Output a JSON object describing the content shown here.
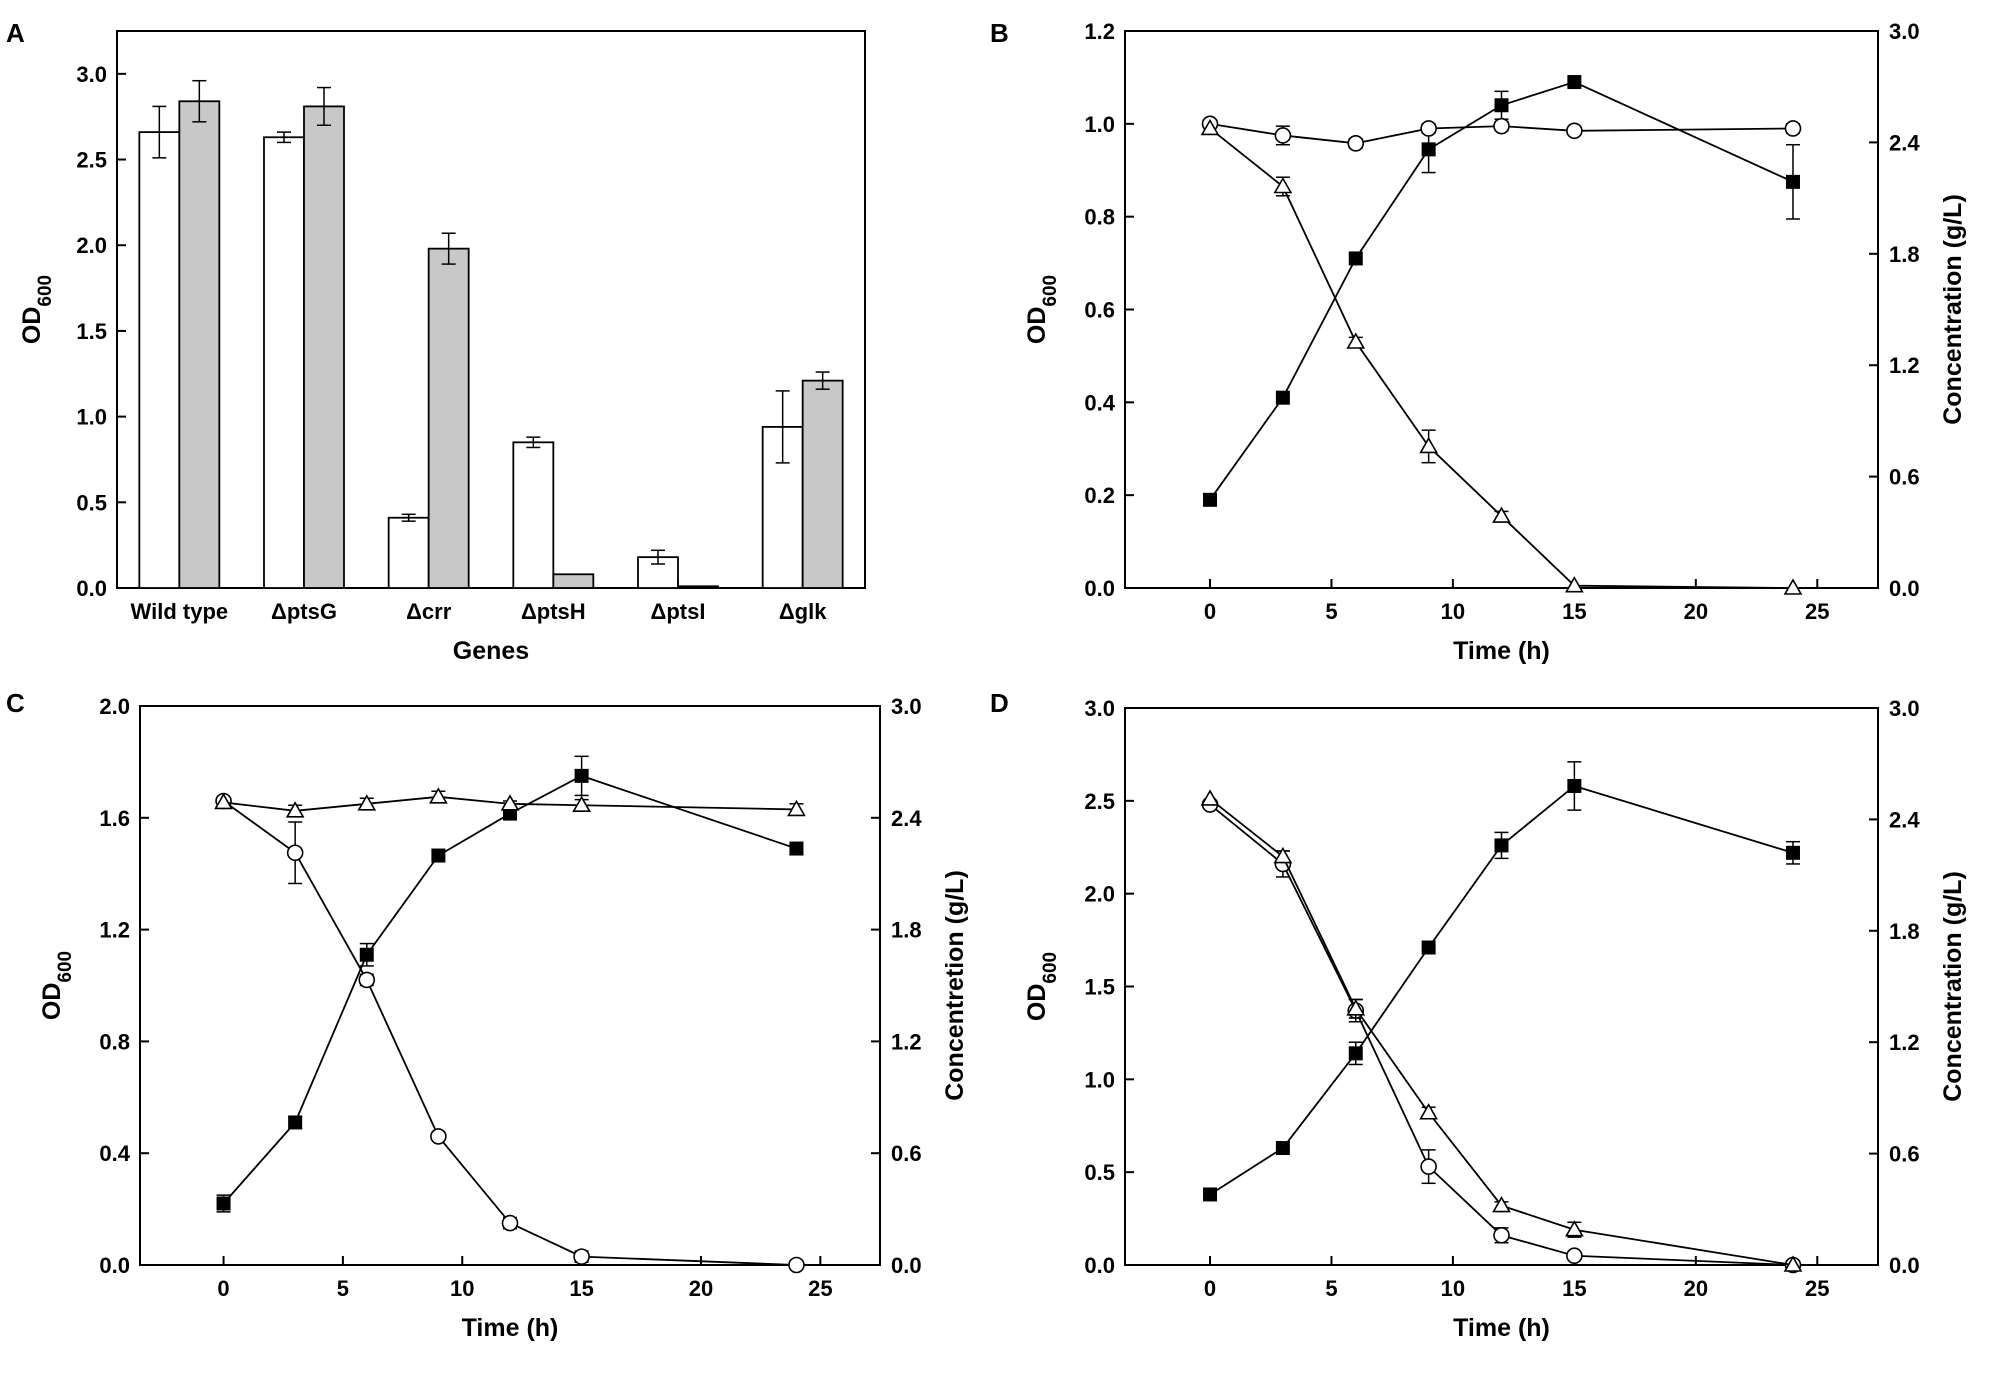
{
  "chart_data": [
    {
      "panel": "A",
      "type": "bar",
      "xlabel": "Genes",
      "ylabel_main": "OD",
      "ylabel_sub": "600",
      "ylim": [
        0,
        3.25
      ],
      "yticks": [
        "0.0",
        "0.5",
        "1.0",
        "1.5",
        "2.0",
        "2.5",
        "3.0"
      ],
      "categories": [
        "Wild type",
        "ΔptsG",
        "Δcrr",
        "ΔptsH",
        "ΔptsI",
        "Δglk"
      ],
      "series": [
        {
          "name": "white",
          "color": "#ffffff",
          "values": [
            2.66,
            2.63,
            0.41,
            0.85,
            0.18,
            0.94
          ],
          "errors": [
            0.15,
            0.03,
            0.02,
            0.03,
            0.04,
            0.21
          ]
        },
        {
          "name": "grey",
          "color": "#c8c8c8",
          "values": [
            2.84,
            2.81,
            1.98,
            0.08,
            0.01,
            1.21
          ],
          "errors": [
            0.12,
            0.11,
            0.09,
            0.0,
            0.0,
            0.05
          ]
        }
      ]
    },
    {
      "panel": "B",
      "type": "line",
      "xlabel": "Time (h)",
      "ylabel_main": "OD",
      "ylabel_sub": "600",
      "ylabel_right": "Concentration (g/L)",
      "xlim": [
        -3.5,
        27.5
      ],
      "xticks": [
        "0",
        "5",
        "10",
        "15",
        "20",
        "25"
      ],
      "ylim": [
        0,
        1.2
      ],
      "yticks": [
        "0.0",
        "0.2",
        "0.4",
        "0.6",
        "0.8",
        "1.0",
        "1.2"
      ],
      "ylim_right": [
        0,
        3.0
      ],
      "yticks_right": [
        "0.0",
        "0.6",
        "1.2",
        "1.8",
        "2.4",
        "3.0"
      ],
      "x": [
        0,
        3,
        6,
        9,
        12,
        15,
        24
      ],
      "series": [
        {
          "name": "filled-square",
          "marker": "square",
          "filled": true,
          "values": [
            0.19,
            0.41,
            0.71,
            0.945,
            1.04,
            1.09,
            0.875
          ],
          "errors": [
            0.01,
            0.0,
            0.0,
            0.05,
            0.03,
            0.0,
            0.08
          ]
        },
        {
          "name": "open-circle",
          "marker": "circle",
          "filled": false,
          "values": [
            1.0,
            0.975,
            0.958,
            0.99,
            0.995,
            0.985,
            0.99
          ],
          "errors": [
            0.0,
            0.02,
            0.01,
            0.01,
            0.01,
            0.0,
            0.01
          ]
        },
        {
          "name": "open-triangle",
          "marker": "triangle",
          "filled": false,
          "values": [
            0.99,
            0.865,
            0.53,
            0.305,
            0.155,
            0.005,
            0.0
          ],
          "errors": [
            0.0,
            0.02,
            0.01,
            0.035,
            0.01,
            0.0,
            0.0
          ]
        }
      ]
    },
    {
      "panel": "C",
      "type": "line",
      "xlabel": "Time (h)",
      "ylabel_main": "OD",
      "ylabel_sub": "600",
      "ylabel_right": "Concentretion (g/L)",
      "xlim": [
        -3.5,
        27.5
      ],
      "xticks": [
        "0",
        "5",
        "10",
        "15",
        "20",
        "25"
      ],
      "ylim": [
        0,
        2.0
      ],
      "yticks": [
        "0.0",
        "0.4",
        "0.8",
        "1.2",
        "1.6",
        "2.0"
      ],
      "ylim_right": [
        0,
        3.0
      ],
      "yticks_right": [
        "0.0",
        "0.6",
        "1.2",
        "1.8",
        "2.4",
        "3.0"
      ],
      "x": [
        0,
        3,
        6,
        9,
        12,
        15,
        24
      ],
      "series": [
        {
          "name": "filled-square",
          "marker": "square",
          "filled": true,
          "values": [
            0.22,
            0.51,
            1.11,
            1.465,
            1.615,
            1.75,
            1.49
          ],
          "errors": [
            0.03,
            0.02,
            0.04,
            0.0,
            0.0,
            0.07,
            0.02
          ]
        },
        {
          "name": "open-circle",
          "marker": "circle",
          "filled": false,
          "values": [
            1.66,
            1.475,
            1.02,
            0.46,
            0.15,
            0.03,
            0.0
          ],
          "errors": [
            0.0,
            0.11,
            0.02,
            0.0,
            0.02,
            0.02,
            0.0
          ]
        },
        {
          "name": "open-triangle",
          "marker": "triangle",
          "filled": false,
          "values": [
            1.655,
            1.625,
            1.65,
            1.675,
            1.65,
            1.645,
            1.63
          ],
          "errors": [
            0.0,
            0.02,
            0.02,
            0.02,
            0.01,
            0.02,
            0.02
          ]
        }
      ]
    },
    {
      "panel": "D",
      "type": "line",
      "xlabel": "Time (h)",
      "ylabel_main": "OD",
      "ylabel_sub": "600",
      "ylabel_right": "Concentration (g/L)",
      "xlim": [
        -3.5,
        27.5
      ],
      "xticks": [
        "0",
        "5",
        "10",
        "15",
        "20",
        "25"
      ],
      "ylim": [
        0,
        3.0
      ],
      "yticks": [
        "0.0",
        "0.5",
        "1.0",
        "1.5",
        "2.0",
        "2.5",
        "3.0"
      ],
      "ylim_right": [
        0,
        3.0
      ],
      "yticks_right": [
        "0.0",
        "0.6",
        "1.2",
        "1.8",
        "2.4",
        "3.0"
      ],
      "x": [
        0,
        3,
        6,
        9,
        12,
        15,
        24
      ],
      "series": [
        {
          "name": "filled-square",
          "marker": "square",
          "filled": true,
          "values": [
            0.38,
            0.63,
            1.14,
            1.71,
            2.26,
            2.58,
            2.22
          ],
          "errors": [
            0.0,
            0.0,
            0.06,
            0.0,
            0.07,
            0.13,
            0.06
          ]
        },
        {
          "name": "open-circle",
          "marker": "circle",
          "filled": false,
          "values": [
            2.48,
            2.16,
            1.37,
            0.53,
            0.16,
            0.05,
            0.0
          ],
          "errors": [
            0.0,
            0.07,
            0.06,
            0.09,
            0.04,
            0.0,
            0.0
          ]
        },
        {
          "name": "open-triangle",
          "marker": "triangle",
          "filled": false,
          "values": [
            2.51,
            2.2,
            1.38,
            0.82,
            0.32,
            0.19,
            0.0
          ],
          "errors": [
            0.0,
            0.03,
            0.05,
            0.03,
            0.02,
            0.04,
            0.0
          ]
        }
      ]
    }
  ]
}
